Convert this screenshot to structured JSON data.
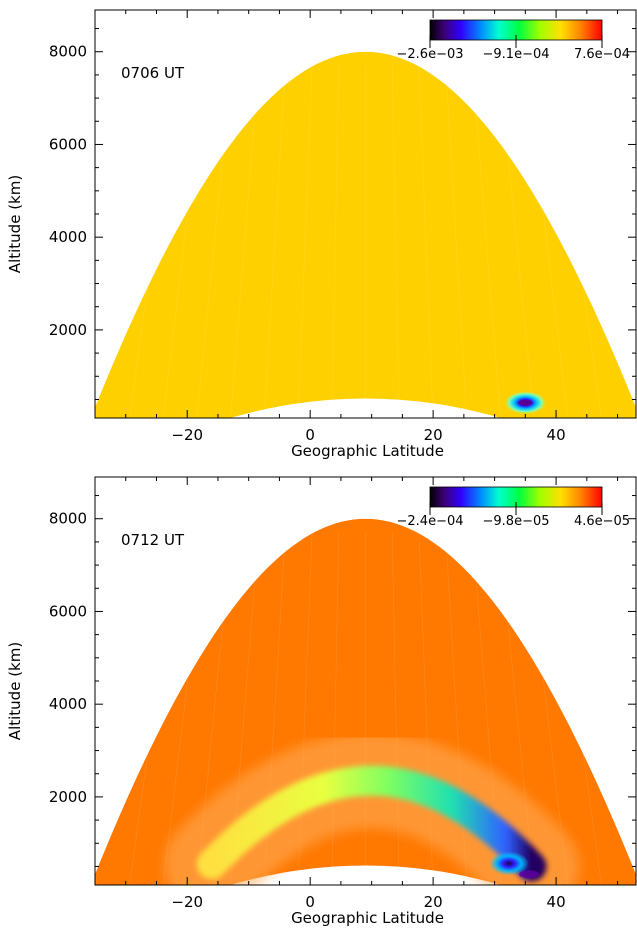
{
  "chart_data": [
    {
      "type": "heatmap",
      "annotation": "0706 UT",
      "xlabel": "Geographic Latitude",
      "ylabel": "Altitude (km)",
      "xlim": [
        -35,
        53
      ],
      "ylim": [
        100,
        8900
      ],
      "xticks": [
        -20,
        0,
        20,
        40
      ],
      "yticks": [
        2000,
        4000,
        6000,
        8000
      ],
      "colorbar": {
        "colormap": "rainbow-black-to-red",
        "range": [
          -0.0026,
          0.00076
        ],
        "tick_labels": [
          "-2.6e-03",
          "-9.1e-04",
          "7.6e-04"
        ]
      },
      "field": {
        "background_color": "#ffd000",
        "features": [
          {
            "lat": 35,
            "alt": 430,
            "value": -0.0026,
            "label": "localized minimum"
          }
        ]
      }
    },
    {
      "type": "heatmap",
      "annotation": "0712 UT",
      "xlabel": "Geographic Latitude",
      "ylabel": "Altitude (km)",
      "xlim": [
        -35,
        53
      ],
      "ylim": [
        100,
        8900
      ],
      "xticks": [
        -20,
        0,
        20,
        40
      ],
      "yticks": [
        2000,
        4000,
        6000,
        8000
      ],
      "colorbar": {
        "colormap": "rainbow-black-to-red",
        "range": [
          -0.00024,
          4.6e-05
        ],
        "tick_labels": [
          "-2.4e-04",
          "-9.8e-05",
          "4.6e-05"
        ]
      },
      "field": {
        "background_color": "#ff7800",
        "arc_band": {
          "lat_start": -16,
          "lat_peak": 10,
          "lat_end": 36,
          "alt_start": 550,
          "alt_peak": 2350,
          "alt_end": 500
        },
        "features": [
          {
            "lat": 33,
            "alt": 650,
            "value": -0.00024,
            "label": "localized minimum"
          }
        ]
      }
    }
  ]
}
